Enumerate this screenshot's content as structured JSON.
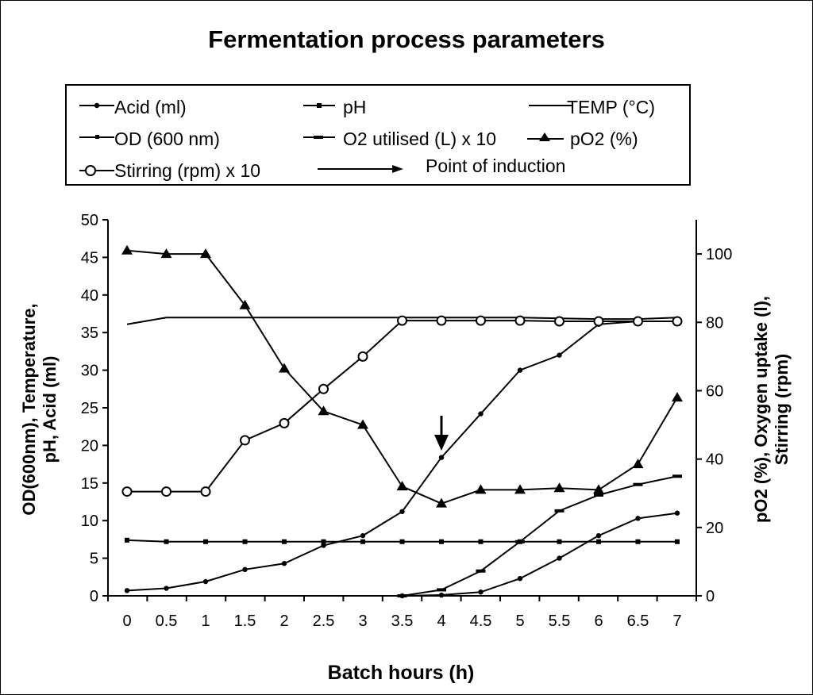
{
  "chart_data": {
    "type": "line",
    "title": "Fermentation process parameters",
    "xlabel": "Batch hours (h)",
    "ylabel_left_line1": "OD(600nm), Temperature,",
    "ylabel_left_line2": "pH, Acid (ml)",
    "ylabel_right_line1": "pO2 (%), Oxygen uptake (l),",
    "ylabel_right_line2": "Stirring (rpm)",
    "x_ticks": [
      "0",
      "0.5",
      "1",
      "1.5",
      "2",
      "2.5",
      "3",
      "3.5",
      "4",
      "4.5",
      "5",
      "5.5",
      "6",
      "6.5",
      "7"
    ],
    "y_left_ticks": [
      "0",
      "5",
      "10",
      "15",
      "20",
      "25",
      "30",
      "35",
      "40",
      "45",
      "50"
    ],
    "y_right_ticks": [
      "0",
      "20",
      "40",
      "60",
      "80",
      "100"
    ],
    "y_left_range": [
      0,
      50
    ],
    "y_right_range": [
      0,
      110
    ],
    "grid": false,
    "legend_position": "top",
    "series": [
      {
        "name": "Acid (ml)",
        "axis": "left",
        "marker": "small-dot",
        "x": [
          3.5,
          4,
          4.5,
          5,
          5.5,
          6,
          6.5,
          7
        ],
        "values": [
          0,
          0.1,
          0.5,
          2.3,
          5.0,
          8.0,
          10.3,
          11.0
        ]
      },
      {
        "name": "pH",
        "axis": "left",
        "marker": "small-square",
        "x": [
          0,
          0.5,
          1,
          1.5,
          2,
          2.5,
          3,
          3.5,
          4,
          4.5,
          5,
          5.5,
          6,
          6.5,
          7
        ],
        "values": [
          7.4,
          7.2,
          7.2,
          7.2,
          7.2,
          7.2,
          7.2,
          7.2,
          7.2,
          7.2,
          7.2,
          7.2,
          7.2,
          7.2,
          7.2
        ]
      },
      {
        "name": "TEMP (°C)",
        "axis": "left",
        "marker": "none",
        "x": [
          0,
          0.5,
          1,
          1.5,
          2,
          2.5,
          3,
          3.5,
          4,
          4.5,
          5,
          5.5,
          6,
          6.5,
          7
        ],
        "values": [
          36.1,
          37,
          37,
          37,
          37,
          37,
          37,
          37,
          37,
          37,
          37,
          36.9,
          36.8,
          36.8,
          37
        ]
      },
      {
        "name": "OD (600 nm)",
        "axis": "left",
        "marker": "small-dot",
        "x": [
          0,
          0.5,
          1,
          1.5,
          2,
          2.5,
          3,
          3.5,
          4,
          4.5,
          5,
          5.5,
          6,
          6.5,
          7
        ],
        "values": [
          0.7,
          1.0,
          1.9,
          3.5,
          4.3,
          6.7,
          8.0,
          11.2,
          18.4,
          24.2,
          30.0,
          32.0,
          36.1,
          36.5,
          36.5
        ]
      },
      {
        "name": "O2 utilised (L) x 10",
        "axis": "left",
        "marker": "dash",
        "x": [
          3.5,
          4,
          4.5,
          5,
          5.5,
          6,
          6.5,
          7
        ],
        "values": [
          0,
          0.8,
          3.3,
          7.2,
          11.3,
          13.4,
          14.8,
          15.9
        ]
      },
      {
        "name": "pO2 (%)",
        "axis": "right",
        "marker": "triangle",
        "x": [
          0,
          0.5,
          1,
          1.5,
          2,
          2.5,
          3,
          3.5,
          4,
          4.5,
          5,
          5.5,
          6,
          6.5,
          7
        ],
        "values": [
          101,
          100,
          100,
          85,
          66.5,
          54,
          50,
          32,
          27,
          31,
          31,
          31.5,
          31,
          38.5,
          58
        ]
      },
      {
        "name": "Stirring (rpm) x 10",
        "axis": "right",
        "marker": "open-circle",
        "x": [
          0,
          0.5,
          1,
          1.5,
          2,
          2.5,
          3,
          3.5,
          4,
          4.5,
          5,
          5.5,
          6,
          6.5,
          7
        ],
        "values": [
          30.5,
          30.5,
          30.5,
          45.5,
          50.5,
          60.5,
          70,
          80.5,
          80.5,
          80.5,
          80.5,
          80.3,
          80.3,
          80.3,
          80.3
        ]
      }
    ],
    "annotations": [
      {
        "type": "arrow",
        "label": "Point of induction",
        "x": 4
      }
    ]
  },
  "legend": {
    "acid": "Acid (ml)",
    "ph": "pH",
    "temp": "TEMP (°C)",
    "od": "OD (600 nm)",
    "o2": "O2 utilised (L) x 10",
    "po2": "pO2 (%)",
    "stirring": "Stirring (rpm) x 10",
    "induction": "Point of induction"
  }
}
